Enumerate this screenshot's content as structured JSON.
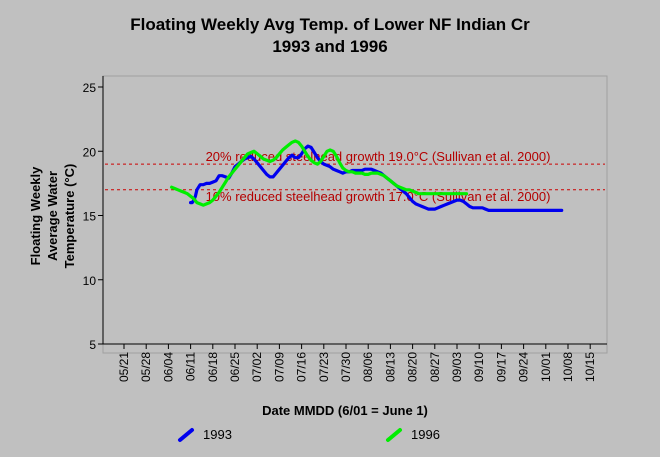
{
  "chart_data": {
    "type": "line",
    "title": "Floating Weekly Avg Temp. of Lower NF Indian Cr",
    "subtitle": "1993 and 1996",
    "xlabel": "Date MMDD (6/01 = June 1)",
    "ylabel_lines": [
      "Floating Weekly",
      "Average Water",
      "Temperature (°C)"
    ],
    "ylim": [
      5,
      25
    ],
    "yticks": [
      5,
      10,
      15,
      20,
      25
    ],
    "xticks": [
      "05/21",
      "05/28",
      "06/04",
      "06/11",
      "06/18",
      "06/25",
      "07/02",
      "07/09",
      "07/16",
      "07/23",
      "07/30",
      "08/06",
      "08/13",
      "08/20",
      "08/27",
      "09/03",
      "09/10",
      "09/17",
      "09/24",
      "10/01",
      "10/08",
      "10/15"
    ],
    "reference_lines": [
      {
        "value": 19.0,
        "label": "20% reduced steelhead growth 19.0°C (Sullivan et al. 2000)",
        "color": "#cc0000"
      },
      {
        "value": 17.0,
        "label": "10% reduced steelhead growth 17.0°C (Sullivan et al. 2000)",
        "color": "#cc0000"
      }
    ],
    "series": [
      {
        "name": "1993",
        "color": "#0000ee",
        "x": [
          21.0,
          21.5,
          22.0,
          22.5,
          23.0,
          24.0,
          25.0,
          26.0,
          27.0,
          28.0,
          29.0,
          30.0,
          31.0,
          32.0,
          33.0,
          34.0,
          35.0,
          36.0,
          37.0,
          38.0,
          39.0,
          40.0,
          41.0,
          42.0,
          43.0,
          44.0,
          45.0,
          46.0,
          47.0,
          48.0,
          49.0,
          50.0,
          51.0,
          52.0,
          53.0,
          54.0,
          55.0,
          56.0,
          57.0,
          58.0,
          59.0,
          60.0,
          61.0,
          62.0,
          63.0,
          64.0,
          65.0,
          66.0,
          67.0,
          68.0,
          69.0,
          70.0,
          71.0,
          72.0,
          73.0,
          74.0,
          75.0,
          76.0,
          77.0,
          78.0,
          79.0,
          80.0,
          81.0,
          82.0,
          83.0,
          84.0,
          85.0,
          86.0,
          87.0,
          88.0,
          89.0,
          90.0,
          91.0,
          92.0,
          93.0,
          94.0,
          95.0,
          96.0,
          97.0,
          98.0,
          99.0,
          100.0,
          101.0,
          102.0,
          103.0,
          104.0,
          105.0,
          106.0,
          107.0,
          108.0,
          109.0,
          110.0,
          111.0,
          112.0,
          113.0,
          114.0,
          115.0,
          116.0,
          117.0,
          118.0,
          119.0,
          120.0,
          121.0,
          122.0,
          123.0,
          124.0,
          125.0,
          126.0,
          127.0,
          128.0,
          129.0,
          130.0,
          131.0,
          132.0,
          133.0,
          134.0,
          135.0,
          136.0,
          137.0,
          138.0
        ],
        "y": [
          16.0,
          16.0,
          16.2,
          16.5,
          17.0,
          17.4,
          17.4,
          17.5,
          17.5,
          17.6,
          17.7,
          18.1,
          18.1,
          18.0,
          17.9,
          18.3,
          18.8,
          19.0,
          19.2,
          19.4,
          19.5,
          19.6,
          19.4,
          19.1,
          18.8,
          18.5,
          18.2,
          18.0,
          18.0,
          18.3,
          18.6,
          18.9,
          19.2,
          19.5,
          19.7,
          19.5,
          19.5,
          19.8,
          20.2,
          20.4,
          20.3,
          19.9,
          19.5,
          19.2,
          19.0,
          18.9,
          18.8,
          18.6,
          18.5,
          18.4,
          18.3,
          18.4,
          18.4,
          18.5,
          18.5,
          18.5,
          18.5,
          18.6,
          18.6,
          18.6,
          18.5,
          18.4,
          18.3,
          18.1,
          17.9,
          17.7,
          17.5,
          17.3,
          17.1,
          16.9,
          16.7,
          16.4,
          16.1,
          15.9,
          15.8,
          15.7,
          15.6,
          15.5,
          15.5,
          15.5,
          15.6,
          15.7,
          15.8,
          15.9,
          16.0,
          16.1,
          16.2,
          16.2,
          16.1,
          15.9,
          15.7,
          15.6,
          15.6,
          15.6,
          15.6,
          15.5,
          15.4,
          15.4,
          15.4,
          15.4,
          15.4,
          15.4,
          15.4,
          15.4,
          15.4,
          15.4,
          15.4,
          15.4,
          15.4,
          15.4,
          15.4,
          15.4,
          15.4,
          15.4,
          15.4,
          15.4,
          15.4,
          15.4,
          15.4,
          15.4
        ]
      },
      {
        "name": "1996",
        "color": "#00ee00",
        "x": [
          15.0,
          16.0,
          17.0,
          18.0,
          19.0,
          20.0,
          21.0,
          22.0,
          23.0,
          24.0,
          25.0,
          26.0,
          27.0,
          28.0,
          29.0,
          30.0,
          31.0,
          32.0,
          33.0,
          34.0,
          35.0,
          36.0,
          37.0,
          38.0,
          39.0,
          40.0,
          41.0,
          42.0,
          43.0,
          44.0,
          45.0,
          46.0,
          47.0,
          48.0,
          49.0,
          50.0,
          51.0,
          52.0,
          53.0,
          54.0,
          55.0,
          56.0,
          57.0,
          58.0,
          59.0,
          60.0,
          61.0,
          62.0,
          63.0,
          64.0,
          65.0,
          66.0,
          67.0,
          68.0,
          69.0,
          70.0,
          71.0,
          72.0,
          73.0,
          74.0,
          75.0,
          76.0,
          77.0,
          78.0,
          79.0,
          80.0,
          81.0,
          82.0,
          83.0,
          84.0,
          85.0,
          86.0,
          87.0,
          88.0,
          89.0,
          90.0,
          91.0,
          92.0,
          93.0,
          94.0,
          95.0,
          96.0,
          97.0,
          98.0,
          99.0,
          100.0,
          101.0,
          102.0,
          103.0,
          104.0,
          105.0,
          106.0,
          107.0,
          108.0
        ],
        "y": [
          17.2,
          17.1,
          17.0,
          16.9,
          16.8,
          16.7,
          16.5,
          16.3,
          16.0,
          15.9,
          15.8,
          15.9,
          16.0,
          16.2,
          16.5,
          16.8,
          17.2,
          17.6,
          18.0,
          18.3,
          18.6,
          18.9,
          19.2,
          19.5,
          19.8,
          19.9,
          20.0,
          19.8,
          19.6,
          19.4,
          19.3,
          19.2,
          19.3,
          19.5,
          19.8,
          20.1,
          20.3,
          20.5,
          20.7,
          20.8,
          20.7,
          20.4,
          20.0,
          19.6,
          19.3,
          19.1,
          19.0,
          19.2,
          19.6,
          20.0,
          20.1,
          20.0,
          19.6,
          19.1,
          18.7,
          18.5,
          18.4,
          18.4,
          18.3,
          18.3,
          18.3,
          18.2,
          18.2,
          18.3,
          18.3,
          18.3,
          18.2,
          18.1,
          17.9,
          17.7,
          17.5,
          17.3,
          17.2,
          17.1,
          17.0,
          17.0,
          16.9,
          16.8,
          16.7,
          16.7,
          16.7,
          16.7,
          16.7,
          16.7,
          16.7,
          16.7,
          16.7,
          16.7,
          16.7,
          16.7,
          16.7,
          16.7,
          16.7,
          16.7
        ]
      }
    ],
    "grid": false,
    "legend_position": "bottom"
  }
}
